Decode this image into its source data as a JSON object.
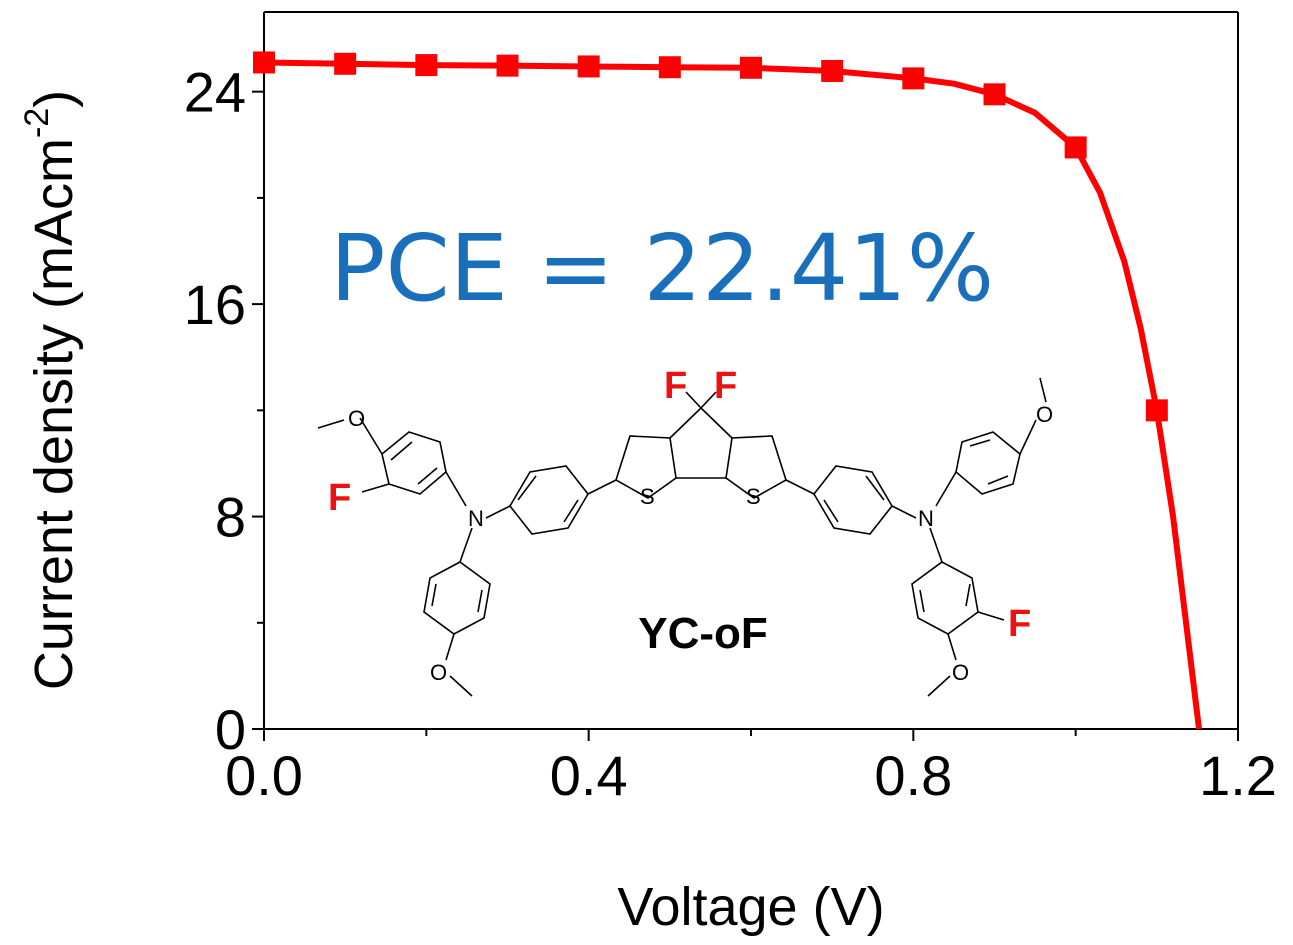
{
  "chart_data": {
    "type": "line",
    "xlabel": "Voltage (V)",
    "ylabel_main": "Current density (mAcm",
    "ylabel_sup": "-2",
    "ylabel_close": ")",
    "xlim": [
      0.0,
      1.2
    ],
    "ylim": [
      0,
      27
    ],
    "x_ticks": [
      "0.0",
      "0.4",
      "0.8",
      "1.2"
    ],
    "x_tick_values": [
      0.0,
      0.4,
      0.8,
      1.2
    ],
    "y_ticks": [
      "0",
      "8",
      "16",
      "24"
    ],
    "y_tick_values": [
      0,
      8,
      16,
      24
    ],
    "series": [
      {
        "color": "#ff0000",
        "markers": "square",
        "x": [
          0.0,
          0.1,
          0.2,
          0.3,
          0.4,
          0.5,
          0.6,
          0.7,
          0.8,
          0.9,
          1.0,
          1.1
        ],
        "y": [
          25.1,
          25.05,
          25.0,
          24.98,
          24.95,
          24.92,
          24.9,
          24.78,
          24.5,
          23.9,
          21.9,
          12.0
        ],
        "curve_x": [
          0.0,
          0.1,
          0.2,
          0.3,
          0.4,
          0.5,
          0.6,
          0.7,
          0.8,
          0.85,
          0.9,
          0.95,
          1.0,
          1.03,
          1.06,
          1.08,
          1.1,
          1.12,
          1.14,
          1.152
        ],
        "curve_y": [
          25.1,
          25.05,
          25.0,
          24.98,
          24.95,
          24.92,
          24.9,
          24.78,
          24.5,
          24.3,
          23.9,
          23.2,
          21.9,
          20.2,
          17.6,
          15.1,
          12.0,
          8.0,
          3.0,
          0.0
        ]
      }
    ]
  },
  "annotation": {
    "pce_text": "PCE = 22.41%"
  },
  "molecule": {
    "name": "YC-oF",
    "atoms": {
      "fluorine": "F",
      "nitrogen": "N",
      "sulfur": "S",
      "oxygen": "O"
    }
  }
}
